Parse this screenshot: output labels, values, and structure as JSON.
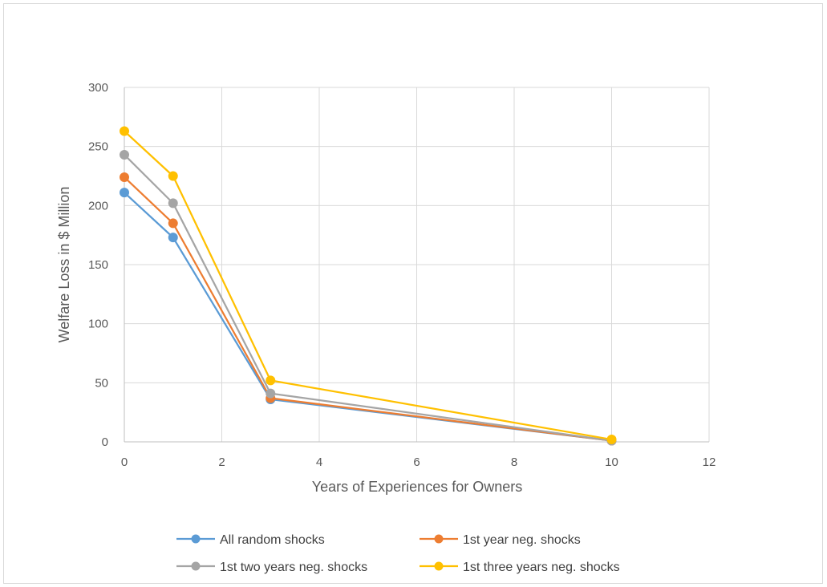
{
  "chart_data": {
    "type": "line",
    "title": "",
    "xlabel": "Years of Experiences for Owners",
    "ylabel": "Welfare Loss in $ Million",
    "xlim": [
      0,
      12
    ],
    "ylim": [
      0,
      300
    ],
    "xticks": [
      0,
      2,
      4,
      6,
      8,
      10,
      12
    ],
    "yticks": [
      0,
      50,
      100,
      150,
      200,
      250,
      300
    ],
    "grid": true,
    "legend_position": "bottom",
    "series": [
      {
        "name": "All random shocks",
        "color": "#5B9BD5",
        "x": [
          0,
          1,
          3,
          10
        ],
        "y": [
          211,
          173,
          36,
          1
        ]
      },
      {
        "name": "1st year neg. shocks",
        "color": "#ED7D31",
        "x": [
          0,
          1,
          3,
          10
        ],
        "y": [
          224,
          185,
          37,
          1
        ]
      },
      {
        "name": "1st two years neg. shocks",
        "color": "#A5A5A5",
        "x": [
          0,
          1,
          3,
          10
        ],
        "y": [
          243,
          202,
          41,
          1
        ]
      },
      {
        "name": "1st three years neg. shocks",
        "color": "#FFC000",
        "x": [
          0,
          1,
          3,
          10
        ],
        "y": [
          263,
          225,
          52,
          2
        ]
      }
    ]
  }
}
